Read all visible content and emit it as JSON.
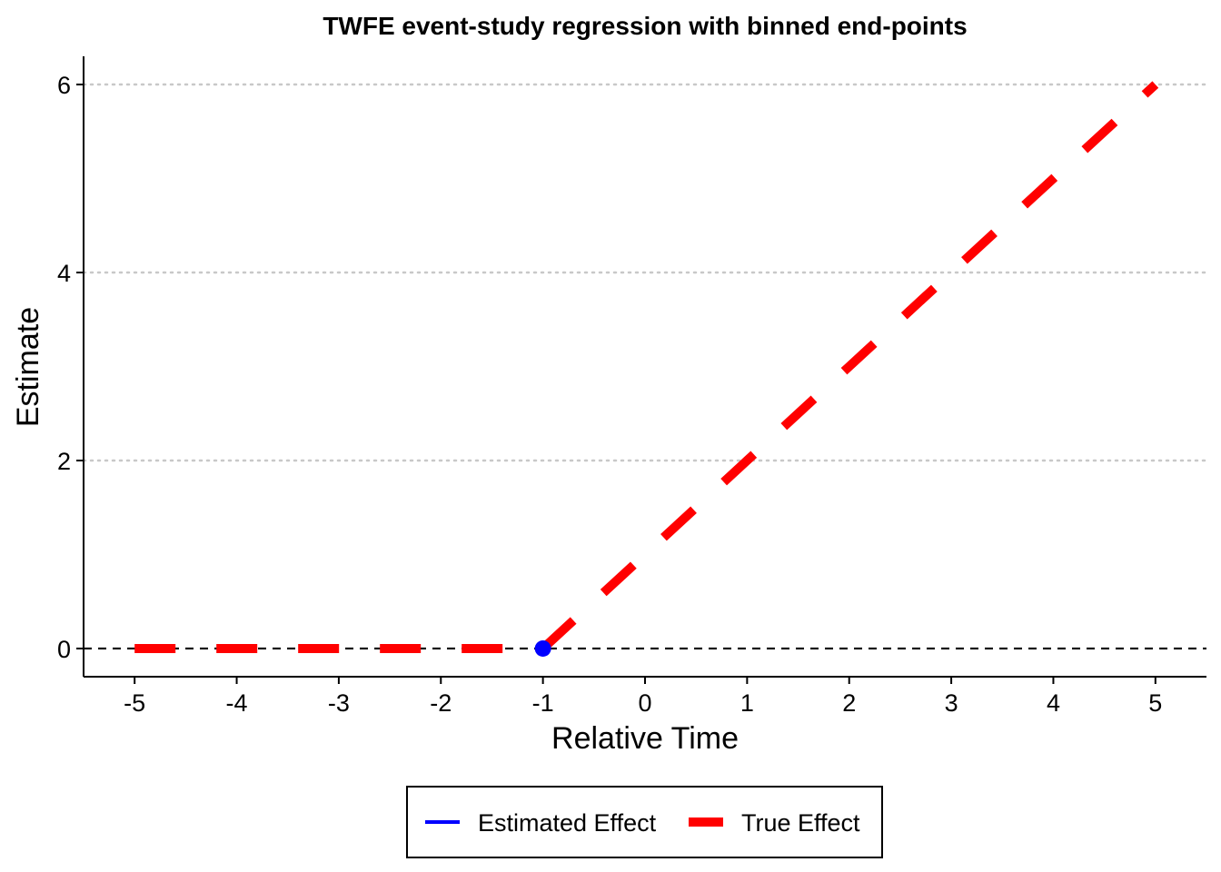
{
  "chart_data": {
    "type": "line",
    "title": "TWFE event-study regression with binned end-points",
    "xlabel": "Relative Time",
    "ylabel": "Estimate",
    "x": [
      -5,
      -4,
      -3,
      -2,
      -1,
      0,
      1,
      2,
      3,
      4,
      5
    ],
    "xlim": [
      -5.5,
      5.5
    ],
    "ylim": [
      -0.3,
      6.3
    ],
    "xticks": [
      "-5",
      "-4",
      "-3",
      "-2",
      "-1",
      "0",
      "1",
      "2",
      "3",
      "4",
      "5"
    ],
    "yticks": [
      0,
      2,
      4,
      6
    ],
    "ytick_labels": [
      "0",
      "2",
      "4",
      "6"
    ],
    "grid": "horizontal dotted",
    "reference_line_y": 0,
    "series": [
      {
        "name": "Estimated Effect",
        "color": "#0000ff",
        "style": "solid",
        "points": [
          {
            "x": -1,
            "y": 0
          }
        ]
      },
      {
        "name": "True Effect",
        "color": "#ff0000",
        "style": "dashed",
        "points": [
          {
            "x": -5,
            "y": 0
          },
          {
            "x": -4,
            "y": 0
          },
          {
            "x": -3,
            "y": 0
          },
          {
            "x": -2,
            "y": 0
          },
          {
            "x": -1,
            "y": 0
          },
          {
            "x": 0,
            "y": 1
          },
          {
            "x": 1,
            "y": 2
          },
          {
            "x": 2,
            "y": 3
          },
          {
            "x": 3,
            "y": 4
          },
          {
            "x": 4,
            "y": 5
          },
          {
            "x": 5,
            "y": 6
          }
        ]
      }
    ],
    "legend_position": "bottom"
  }
}
